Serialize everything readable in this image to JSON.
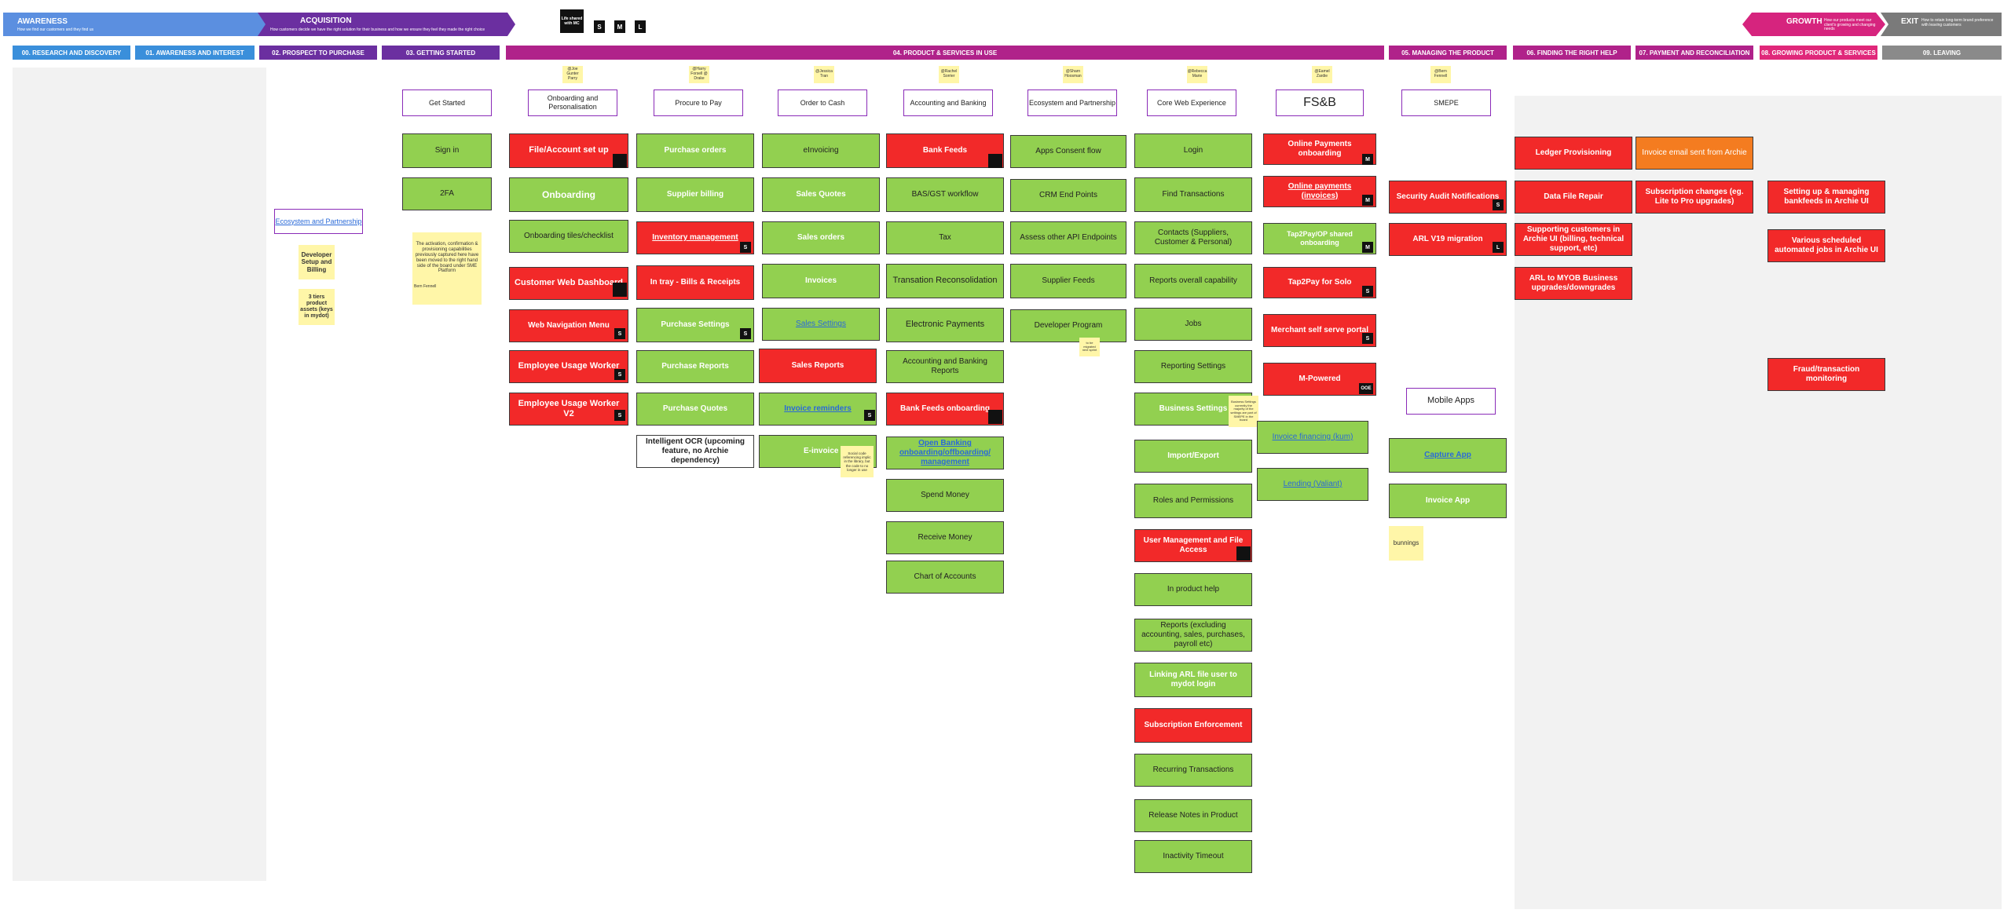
{
  "banner": {
    "awareness": {
      "title": "AWARENESS",
      "subtitle": "How we find our customers and they find us"
    },
    "acquisition": {
      "title": "ACQUISITION",
      "subtitle": "How customers decide we have the right solution for their business and how we ensure they feel they made the right choice"
    },
    "growth": {
      "title": "GROWTH",
      "subtitle": "How our products meet our client's growing and changing needs"
    },
    "exit": {
      "title": "EXIT",
      "subtitle": "How to retain long-term brand preference with leaving customers"
    }
  },
  "legend": {
    "note": "Life shared with MC",
    "sizes": [
      "S",
      "M",
      "L"
    ]
  },
  "stages": [
    "00. RESEARCH AND DISCOVERY",
    "01. AWARENESS AND INTEREST",
    "02. PROSPECT TO PURCHASE",
    "03. GETTING STARTED",
    "04. PRODUCT & SERVICES IN USE",
    "05. MANAGING THE PRODUCT",
    "06. FINDING THE RIGHT HELP",
    "07. PAYMENT AND RECONCILIATION",
    "08. GROWING PRODUCT & SERVICES",
    "09. LEAVING"
  ],
  "colors": {
    "stage_blue": "#3a8fdb",
    "stage_purple": "#6b2fa0",
    "stage_magenta": "#b0228a",
    "stage_pink": "#e0287a",
    "stage_grey": "#8a8a8a",
    "green": "#92d050",
    "red": "#f22929",
    "orange": "#f47c20"
  },
  "owners": [
    "@Joe Gunter Parry",
    "@Harry Forsell @ Drake",
    "@Jessica Tran",
    "@Rachel Sorrier",
    "@Sharn Hoosman",
    "@Rebecca Marie",
    "@Eamel Zardie",
    "@Bern Fennell"
  ],
  "columns": {
    "getstarted": "Get Started",
    "onboarding": "Onboarding and Personalisation",
    "procure": "Procure to Pay",
    "ordercash": "Order to Cash",
    "accounting": "Accounting and Banking",
    "ecosystem": "Ecosystem and Partnership",
    "core": "Core Web Experience",
    "fsb": "FS&B",
    "smepe": "SMEPE"
  },
  "cards": {
    "signin": "Sign in",
    "twofa": "2FA",
    "ecosystem_link": "Ecosystem and Partnership",
    "dev_setup": "Developer Setup and Billing",
    "three_tiers": "3 tiers product assets (keys in mydot)",
    "sticky_note": "The activation, confirmation & provisioning capabilities previously captured here have been moved to the right hand side of the board under SME Platform",
    "sticky_author": "Bern Fennell",
    "file_setup": "File/Account set up",
    "onboarding": "Onboarding",
    "onb_tiles": "Onboarding tiles/checklist",
    "cust_dash": "Customer Web Dashboard",
    "web_nav": "Web Navigation Menu",
    "emp_usage1": "Employee Usage Worker",
    "emp_usage2": "Employee Usage Worker V2",
    "po": "Purchase orders",
    "supplier_billing": "Supplier billing",
    "inventory": "Inventory management",
    "intray": "In tray - Bills & Receipts",
    "purchase_settings": "Purchase Settings",
    "purchase_reports": "Purchase Reports",
    "purchase_quotes": "Purchase Quotes",
    "ocr": "Intelligent OCR (upcoming feature, no Archie dependency)",
    "einvoicing": "eInvoicing",
    "sales_quotes": "Sales Quotes",
    "sales_orders": "Sales orders",
    "invoices": "Invoices",
    "sales_settings": "Sales Settings",
    "sales_reports": "Sales Reports",
    "invoice_reminders": "Invoice reminders",
    "einvoice": "E-invoice",
    "einvoice_note": "Social code referencing implic in the library, but the code to no longer in use",
    "bank_feeds": "Bank Feeds",
    "bas_gst": "BAS/GST workflow",
    "tax": "Tax",
    "trans_recon": "Transation Reconsolidation",
    "epayments": "Electronic Payments",
    "acc_reports": "Accounting and Banking Reports",
    "bf_onboarding": "Bank Feeds onboarding",
    "open_banking": "Open Banking onboarding/offboarding/ management",
    "spend": "Spend Money",
    "receive": "Receive Money",
    "coa": "Chart of Accounts",
    "apps_consent": "Apps Consent flow",
    "crm": "CRM End Points",
    "assess_api": "Assess other API Endpoints",
    "supplier_feeds": "Supplier Feeds",
    "dev_program": "Developer Program",
    "dev_note": "to be migrated next sprint",
    "login": "Login",
    "find_trans": "Find Transactions",
    "contacts": "Contacts (Suppliers, Customer & Personal)",
    "reports_cap": "Reports overall capability",
    "jobs": "Jobs",
    "reporting_settings": "Reporting Settings",
    "business_settings": "Business Settings",
    "business_note": "Business Settings currently the majority of the settings are part of SMEPE in the board",
    "import_export": "Import/Export",
    "roles": "Roles and Permissions",
    "user_mgmt": "User Management and File Access",
    "inproduct_help": "In product help",
    "reports_excl": "Reports (excluding accounting, sales, purchases, payroll etc)",
    "linking_arl": "Linking ARL file user to mydot login",
    "sub_enforce": "Subscription Enforcement",
    "recurring": "Recurring Transactions",
    "release_notes": "Release Notes in Product",
    "inactivity": "Inactivity Timeout",
    "online_pay_onb": "Online Payments onboarding",
    "online_pay_inv": "Online payments (invoices)",
    "tap2pay_shared": "Tap2Pay/OP shared onboarding",
    "tap2pay_solo": "Tap2Pay for Solo",
    "merchant": "Merchant self serve portal",
    "mpowered": "M-Powered",
    "invoice_fin": "Invoice financing (kum)",
    "lending": "Lending (Valiant)",
    "security_audit": "Security Audit Notifications",
    "arl_v19": "ARL V19 migration",
    "mobile_apps": "Mobile Apps",
    "capture_app": "Capture App",
    "invoice_app": "Invoice App",
    "bunnings": "bunnings",
    "ledger": "Ledger Provisioning",
    "data_repair": "Data File Repair",
    "supporting": "Supporting customers in Archie UI (billing, technical support, etc)",
    "arl_myob": "ARL to MYOB Business upgrades/downgrades",
    "invoice_email": "Invoice email sent from Archie",
    "sub_changes": "Subscription changes (eg. Lite to Pro upgrades)",
    "bankfeeds_setup": "Setting up & managing bankfeeds in Archie UI",
    "scheduled_jobs": "Various scheduled automated jobs in Archie UI",
    "fraud": "Fraud/transaction monitoring"
  },
  "badges": {
    "s": "S",
    "m": "M",
    "l": "L",
    "ooe": "OOE"
  }
}
